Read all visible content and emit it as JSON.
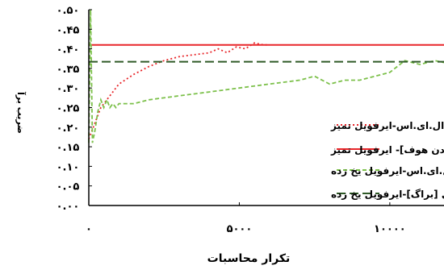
{
  "chart_data": {
    "type": "line",
    "title": "",
    "xlabel": "تکرار محاسبات",
    "ylabel": "ضریب برآ",
    "xlim": [
      0,
      11800
    ],
    "ylim": [
      0.0,
      0.5
    ],
    "grid": false,
    "legend_position": "center",
    "x_ticks": [
      {
        "value": 0,
        "label": "۰"
      },
      {
        "value": 5000,
        "label": "۵۰۰۰"
      },
      {
        "value": 10000,
        "label": "۱۰۰۰۰"
      }
    ],
    "y_ticks": [
      {
        "value": 0.0,
        "label": "۰.۰۰"
      },
      {
        "value": 0.05,
        "label": "۰.۰۵"
      },
      {
        "value": 0.1,
        "label": "۰.۱۰"
      },
      {
        "value": 0.15,
        "label": "۰.۱۵"
      },
      {
        "value": 0.2,
        "label": "۰.۲۰"
      },
      {
        "value": 0.25,
        "label": "۰.۲۵"
      },
      {
        "value": 0.3,
        "label": "۰.۳۰"
      },
      {
        "value": 0.35,
        "label": "۰.۳۵"
      },
      {
        "value": 0.4,
        "label": "۰.۴۰"
      },
      {
        "value": 0.45,
        "label": "۰.۴۵"
      },
      {
        "value": 0.5,
        "label": "۰.۵۰"
      }
    ],
    "series": [
      {
        "name": "ال.ای.اس-ایرفویل تمیز",
        "color": "#e8262a",
        "style": "dotted",
        "x": [
          0,
          100,
          200,
          400,
          700,
          1000,
          1500,
          2000,
          2500,
          3000,
          3500,
          4000,
          4300,
          4600,
          4900,
          5200,
          5500,
          5800,
          6000
        ],
        "y": [
          0.17,
          0.19,
          0.21,
          0.25,
          0.28,
          0.31,
          0.335,
          0.355,
          0.37,
          0.38,
          0.385,
          0.39,
          0.4,
          0.39,
          0.405,
          0.4,
          0.415,
          0.41,
          0.41
        ]
      },
      {
        "name": "داده تجربی[ابوت-وان دن هوف]- ایرفویل تمیز",
        "color": "#e8262a",
        "style": "solid",
        "x": [
          0,
          11800
        ],
        "y": [
          0.41,
          0.41
        ]
      },
      {
        "name": "ال.ای.اس-ایرفویل یخ زده",
        "color": "#7cc04a",
        "style": "dashed",
        "x": [
          0,
          60,
          120,
          200,
          300,
          400,
          500,
          600,
          700,
          800,
          900,
          1000,
          1200,
          1500,
          2000,
          3000,
          4000,
          5000,
          6000,
          7000,
          7500,
          8000,
          8500,
          9000,
          9500,
          10000,
          10500,
          11000,
          11500,
          11800
        ],
        "y": [
          0.16,
          0.5,
          0.16,
          0.19,
          0.24,
          0.27,
          0.25,
          0.27,
          0.25,
          0.26,
          0.25,
          0.26,
          0.26,
          0.26,
          0.27,
          0.28,
          0.29,
          0.3,
          0.31,
          0.32,
          0.33,
          0.31,
          0.32,
          0.32,
          0.33,
          0.34,
          0.37,
          0.36,
          0.37,
          0.365
        ]
      },
      {
        "name": "داده تجربی [براگ]-ایرفویل یخ زده",
        "color": "#2f5a27",
        "style": "longdash",
        "x": [
          0,
          11800
        ],
        "y": [
          0.367,
          0.367
        ]
      }
    ]
  }
}
